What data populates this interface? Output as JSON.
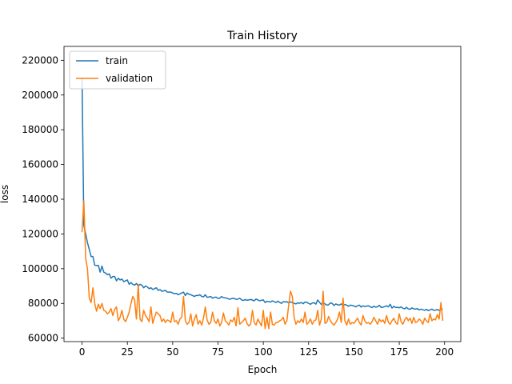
{
  "chart_data": {
    "type": "line",
    "title": "Train History",
    "xlabel": "Epoch",
    "ylabel": "loss",
    "xlim": [
      -9.95,
      208.95
    ],
    "ylim": [
      58000,
      228000
    ],
    "xticks": [
      0,
      25,
      50,
      75,
      100,
      125,
      150,
      175,
      200
    ],
    "yticks": [
      60000,
      80000,
      100000,
      120000,
      140000,
      160000,
      180000,
      200000,
      220000
    ],
    "grid": false,
    "legend_position": "top-left",
    "series": [
      {
        "name": "train",
        "color": "#1f77b4",
        "x": [
          0,
          1,
          2,
          3,
          4,
          5,
          6,
          7,
          8,
          9,
          10,
          11,
          12,
          13,
          14,
          15,
          16,
          17,
          18,
          19,
          20,
          21,
          22,
          23,
          24,
          25,
          26,
          27,
          28,
          29,
          30,
          31,
          32,
          33,
          34,
          35,
          36,
          37,
          38,
          39,
          40,
          41,
          42,
          43,
          44,
          45,
          46,
          47,
          48,
          49,
          50,
          51,
          52,
          53,
          54,
          55,
          56,
          57,
          58,
          59,
          60,
          61,
          62,
          63,
          64,
          65,
          66,
          67,
          68,
          69,
          70,
          71,
          72,
          73,
          74,
          75,
          76,
          77,
          78,
          79,
          80,
          81,
          82,
          83,
          84,
          85,
          86,
          87,
          88,
          89,
          90,
          91,
          92,
          93,
          94,
          95,
          96,
          97,
          98,
          99,
          100,
          101,
          102,
          103,
          104,
          105,
          106,
          107,
          108,
          109,
          110,
          111,
          112,
          113,
          114,
          115,
          116,
          117,
          118,
          119,
          120,
          121,
          122,
          123,
          124,
          125,
          126,
          127,
          128,
          129,
          130,
          131,
          132,
          133,
          134,
          135,
          136,
          137,
          138,
          139,
          140,
          141,
          142,
          143,
          144,
          145,
          146,
          147,
          148,
          149,
          150,
          151,
          152,
          153,
          154,
          155,
          156,
          157,
          158,
          159,
          160,
          161,
          162,
          163,
          164,
          165,
          166,
          167,
          168,
          169,
          170,
          171,
          172,
          173,
          174,
          175,
          176,
          177,
          178,
          179,
          180,
          181,
          182,
          183,
          184,
          185,
          186,
          187,
          188,
          189,
          190,
          191,
          192,
          193,
          194,
          195,
          196,
          197,
          198,
          199
        ],
        "values": [
          210000,
          125000,
          120000,
          115000,
          111000,
          107000,
          107000,
          102000,
          101800,
          101900,
          98000,
          101500,
          98000,
          97500,
          96500,
          97000,
          94500,
          95500,
          95500,
          93000,
          94500,
          93500,
          94000,
          92500,
          93000,
          93500,
          91000,
          92000,
          91000,
          90500,
          91500,
          90000,
          91000,
          90500,
          89000,
          90000,
          89500,
          88500,
          89000,
          88000,
          88500,
          89000,
          87500,
          88000,
          87000,
          87200,
          87500,
          86500,
          86500,
          86500,
          86000,
          85500,
          85800,
          85000,
          85500,
          86000,
          86500,
          84500,
          86000,
          85200,
          85000,
          84500,
          84000,
          84600,
          84500,
          85000,
          84000,
          83800,
          85000,
          83500,
          83700,
          84000,
          83000,
          83500,
          83600,
          82800,
          83000,
          84000,
          83300,
          83200,
          83000,
          82500,
          82500,
          83000,
          82800,
          82300,
          82500,
          83000,
          82000,
          81700,
          82200,
          81800,
          82000,
          82300,
          81900,
          81500,
          82500,
          82000,
          81500,
          81800,
          82000,
          80500,
          81200,
          81000,
          80800,
          81500,
          81000,
          80500,
          81300,
          80600,
          80000,
          81000,
          80800,
          81000,
          80200,
          80900,
          80500,
          80100,
          79700,
          80300,
          80100,
          80500,
          79800,
          80800,
          80600,
          80000,
          79500,
          80200,
          80400,
          79600,
          82000,
          80600,
          79400,
          80200,
          79800,
          79000,
          79200,
          80300,
          80000,
          78800,
          79700,
          79200,
          79000,
          79700,
          78900,
          79400,
          79000,
          78300,
          79000,
          78800,
          78500,
          78000,
          78700,
          79000,
          77900,
          78600,
          78200,
          78400,
          78700,
          78000,
          77600,
          78400,
          77800,
          78100,
          78900,
          77700,
          77800,
          78200,
          78600,
          78000,
          79500,
          77300,
          78300,
          77700,
          77700,
          77500,
          78000,
          77200,
          76900,
          77700,
          76800,
          76600,
          77400,
          76900,
          76700,
          77000,
          76200,
          76700,
          76400,
          76000,
          76600,
          75800,
          76300,
          76700,
          76000,
          76100,
          76500,
          75900,
          76800,
          76600
        ]
      },
      {
        "name": "validation",
        "color": "#ff7f0e",
        "x": [
          0,
          1,
          2,
          3,
          4,
          5,
          6,
          7,
          8,
          9,
          10,
          11,
          12,
          13,
          14,
          15,
          16,
          17,
          18,
          19,
          20,
          21,
          22,
          23,
          24,
          25,
          26,
          27,
          28,
          29,
          30,
          31,
          32,
          33,
          34,
          35,
          36,
          37,
          38,
          39,
          40,
          41,
          42,
          43,
          44,
          45,
          46,
          47,
          48,
          49,
          50,
          51,
          52,
          53,
          54,
          55,
          56,
          57,
          58,
          59,
          60,
          61,
          62,
          63,
          64,
          65,
          66,
          67,
          68,
          69,
          70,
          71,
          72,
          73,
          74,
          75,
          76,
          77,
          78,
          79,
          80,
          81,
          82,
          83,
          84,
          85,
          86,
          87,
          88,
          89,
          90,
          91,
          92,
          93,
          94,
          95,
          96,
          97,
          98,
          99,
          100,
          101,
          102,
          103,
          104,
          105,
          106,
          107,
          108,
          109,
          110,
          111,
          112,
          113,
          114,
          115,
          116,
          117,
          118,
          119,
          120,
          121,
          122,
          123,
          124,
          125,
          126,
          127,
          128,
          129,
          130,
          131,
          132,
          133,
          134,
          135,
          136,
          137,
          138,
          139,
          140,
          141,
          142,
          143,
          144,
          145,
          146,
          147,
          148,
          149,
          150,
          151,
          152,
          153,
          154,
          155,
          156,
          157,
          158,
          159,
          160,
          161,
          162,
          163,
          164,
          165,
          166,
          167,
          168,
          169,
          170,
          171,
          172,
          173,
          174,
          175,
          176,
          177,
          178,
          179,
          180,
          181,
          182,
          183,
          184,
          185,
          186,
          187,
          188,
          189,
          190,
          191,
          192,
          193,
          194,
          195,
          196,
          197,
          198,
          199
        ],
        "values": [
          121000,
          139000,
          106000,
          100000,
          83000,
          80500,
          89000,
          80000,
          75500,
          79500,
          77000,
          80000,
          76000,
          75500,
          74000,
          75000,
          77000,
          73000,
          76500,
          78000,
          70000,
          72000,
          76000,
          71000,
          69500,
          72000,
          75000,
          80000,
          84000,
          82000,
          71000,
          91000,
          71000,
          69500,
          76000,
          73000,
          71500,
          69500,
          78000,
          68500,
          72000,
          75000,
          74000,
          73000,
          69500,
          71000,
          69000,
          70500,
          70000,
          69000,
          75000,
          69500,
          70000,
          68000,
          71000,
          72000,
          84000,
          70000,
          68000,
          69000,
          74000,
          67000,
          71000,
          73500,
          68000,
          70000,
          67500,
          71500,
          78000,
          70500,
          68000,
          69000,
          75000,
          70000,
          68500,
          71000,
          67000,
          69000,
          74500,
          70000,
          69000,
          67500,
          70500,
          69500,
          72000,
          67000,
          77500,
          68000,
          69000,
          70000,
          71500,
          68500,
          67000,
          68000,
          76000,
          69000,
          67500,
          71000,
          69000,
          67000,
          76000,
          65500,
          72000,
          65500,
          75000,
          68000,
          67500,
          69000,
          69000,
          70000,
          70500,
          72000,
          68000,
          70000,
          79000,
          87000,
          84000,
          72000,
          68000,
          70000,
          69000,
          71000,
          69000,
          75000,
          68000,
          69000,
          71000,
          68000,
          70000,
          70500,
          76000,
          67500,
          71000,
          87000,
          68500,
          69000,
          72500,
          70000,
          68500,
          67500,
          69000,
          71000,
          75000,
          69000,
          83000,
          70000,
          67500,
          71000,
          68000,
          69000,
          68500,
          70000,
          71500,
          69000,
          67500,
          73000,
          70000,
          68500,
          69000,
          68000,
          69500,
          72000,
          70000,
          68000,
          71000,
          69500,
          70500,
          68500,
          73000,
          69000,
          68000,
          70000,
          71500,
          69000,
          68000,
          74000,
          69500,
          68000,
          70500,
          72000,
          70000,
          71500,
          68500,
          72000,
          69000,
          69500,
          71000,
          70000,
          68000,
          71500,
          70000,
          69000,
          74000,
          70000,
          71000,
          70500,
          73500,
          71000,
          80500,
          70000
        ]
      }
    ]
  }
}
